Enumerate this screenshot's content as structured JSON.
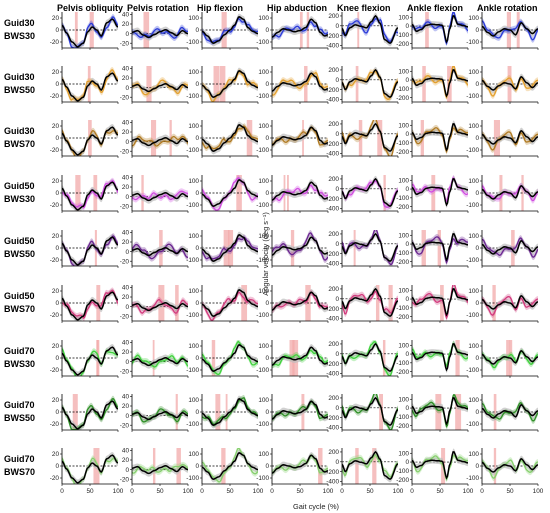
{
  "chart_data": {
    "type": "line",
    "column_titles": [
      "Pelvis obliquity",
      "Pelvis rotation",
      "Hip flexion",
      "Hip abduction",
      "Knee flexion",
      "Ankle flexion",
      "Ankle rotation"
    ],
    "row_labels": [
      [
        "Guid30",
        "BWS30"
      ],
      [
        "Guid30",
        "BWS50"
      ],
      [
        "Guid30",
        "BWS70"
      ],
      [
        "Guid50",
        "BWS30"
      ],
      [
        "Guid50",
        "BWS50"
      ],
      [
        "Guid50",
        "BWS70"
      ],
      [
        "Guid70",
        "BWS30"
      ],
      [
        "Guid70",
        "BWS50"
      ],
      [
        "Guid70",
        "BWS70"
      ]
    ],
    "row_colors": [
      "#2a3ad8",
      "#e3a02e",
      "#b07a22",
      "#d04ce0",
      "#6a2590",
      "#d23b7d",
      "#3fd23c",
      "#2e8f26",
      "#86cf6d"
    ],
    "reference_color": "#000000",
    "band_color": "#bdbdbd",
    "significance_color": "#f1a9a9",
    "xlabel": "Gait cycle (%)",
    "ylabel": "Angular velocity (deg s⁻¹)",
    "x_ticks": [
      "0",
      "50",
      "100"
    ],
    "xlim": [
      0,
      100
    ],
    "y_ticks_by_column": [
      [
        "20",
        "0",
        "-20"
      ],
      [
        "40",
        "20",
        "0",
        "-20"
      ],
      [
        "100",
        "0",
        "-100"
      ],
      [
        "100",
        "0",
        "-100"
      ],
      [
        "200",
        "0",
        "-200",
        "-400"
      ],
      [
        "100",
        "0",
        "-100",
        "-200"
      ],
      [
        "100",
        "0",
        "-100"
      ]
    ],
    "ylim_by_column": [
      [
        -30,
        30
      ],
      [
        -30,
        45
      ],
      [
        -150,
        150
      ],
      [
        -150,
        150
      ],
      [
        -450,
        280
      ],
      [
        -250,
        160
      ],
      [
        -150,
        150
      ]
    ],
    "reference_profiles": [
      {
        "x": [
          0,
          8,
          18,
          28,
          38,
          46,
          54,
          62,
          70,
          80,
          90,
          100
        ],
        "y": [
          8,
          -5,
          -20,
          -28,
          -22,
          -3,
          5,
          0,
          -10,
          12,
          18,
          5
        ]
      },
      {
        "x": [
          0,
          10,
          20,
          30,
          40,
          50,
          60,
          70,
          80,
          90,
          100
        ],
        "y": [
          3,
          6,
          -3,
          -8,
          -2,
          4,
          8,
          2,
          -4,
          6,
          0
        ]
      },
      {
        "x": [
          0,
          10,
          20,
          30,
          40,
          50,
          58,
          66,
          74,
          82,
          90,
          100
        ],
        "y": [
          -10,
          -50,
          -110,
          -90,
          -40,
          0,
          40,
          110,
          90,
          20,
          -10,
          -30
        ]
      },
      {
        "x": [
          0,
          10,
          20,
          30,
          40,
          50,
          60,
          70,
          78,
          86,
          94,
          100
        ],
        "y": [
          -60,
          -20,
          10,
          0,
          -15,
          -5,
          20,
          90,
          60,
          -20,
          -50,
          -40
        ]
      },
      {
        "x": [
          0,
          6,
          14,
          24,
          34,
          44,
          52,
          60,
          68,
          76,
          86,
          100
        ],
        "y": [
          -50,
          -200,
          -40,
          20,
          -10,
          -40,
          80,
          200,
          50,
          -280,
          -350,
          -40
        ]
      },
      {
        "x": [
          0,
          8,
          16,
          26,
          36,
          46,
          54,
          62,
          68,
          74,
          82,
          92,
          100
        ],
        "y": [
          20,
          -60,
          -40,
          10,
          20,
          15,
          10,
          -180,
          -20,
          120,
          20,
          5,
          -10
        ]
      },
      {
        "x": [
          0,
          10,
          20,
          30,
          40,
          50,
          60,
          70,
          80,
          90,
          100
        ],
        "y": [
          30,
          -20,
          -50,
          -15,
          10,
          0,
          -40,
          60,
          10,
          -30,
          10
        ]
      }
    ]
  }
}
